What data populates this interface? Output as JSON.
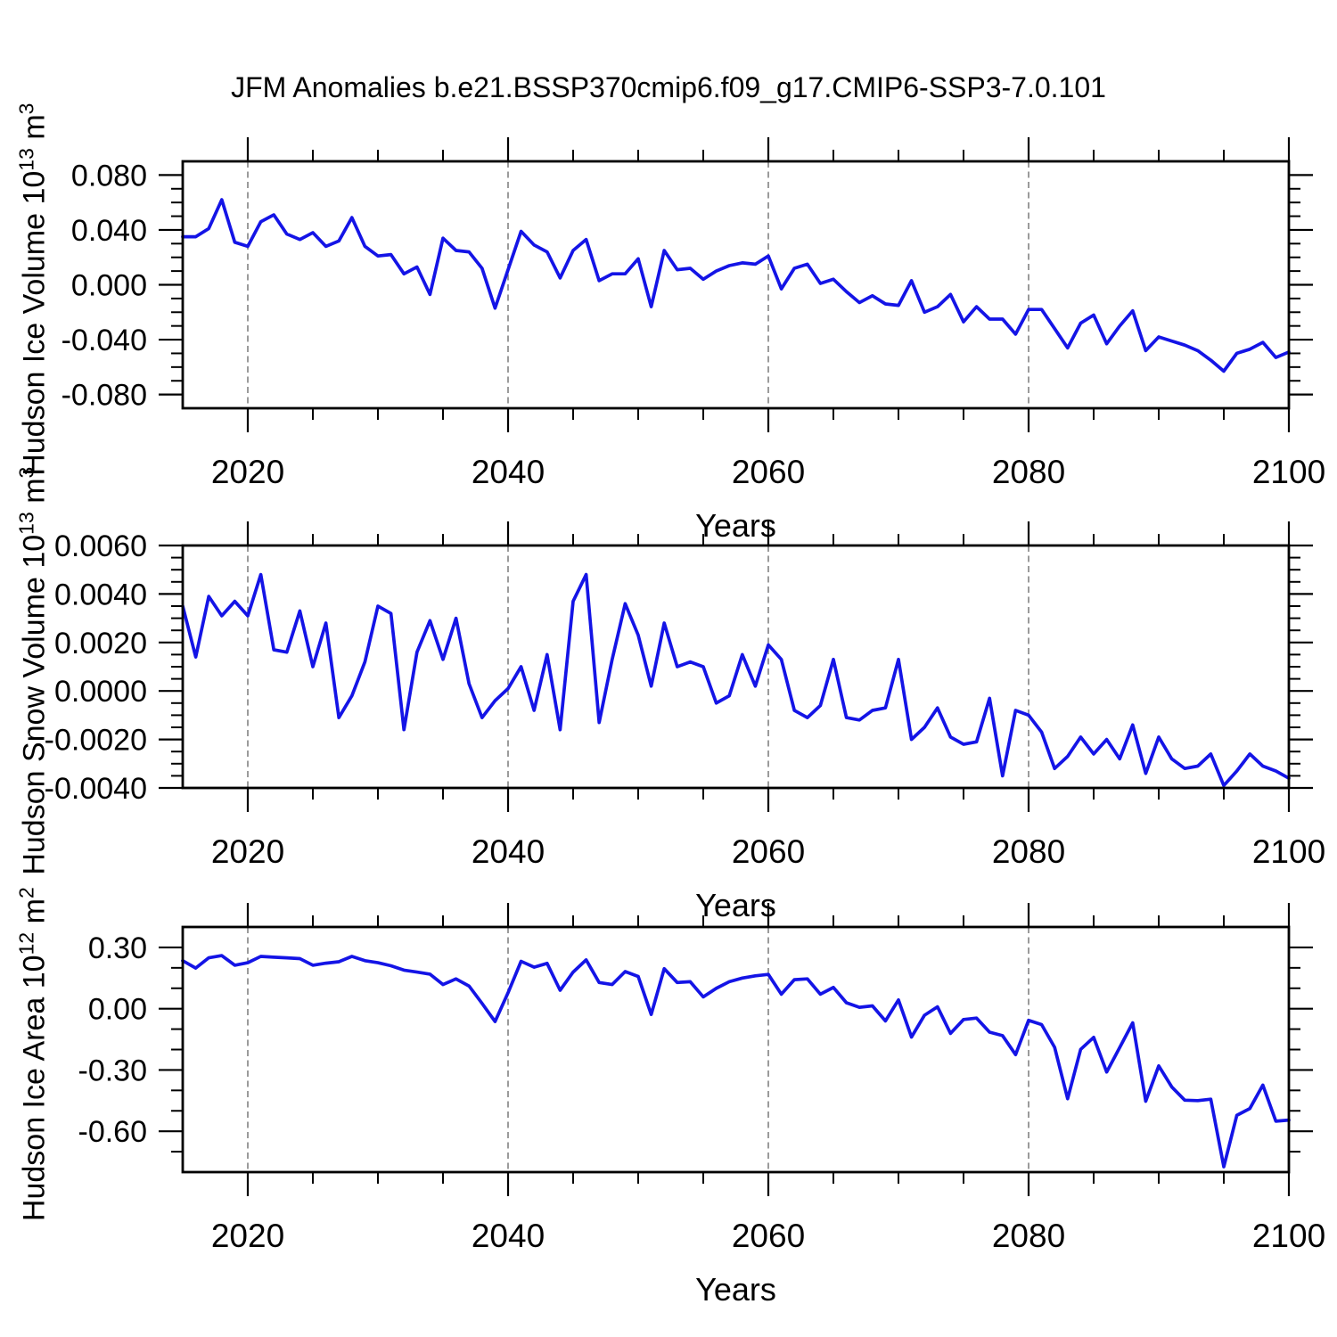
{
  "title": "JFM Anomalies b.e21.BSSP370cmip6.f09_g17.CMIP6-SSP3-7.0.101",
  "colors": {
    "line": "#1414e6",
    "grid": "#7a7a7a",
    "axis": "#000000",
    "text": "#000000",
    "background": "#ffffff"
  },
  "chart_data": [
    {
      "id": "hudson-ice-volume",
      "type": "line",
      "xlabel": "Years",
      "ylabel": {
        "prefix": "Hudson Ice Volume 10",
        "sup1": "13",
        "mid": " m",
        "sup2": "3"
      },
      "x_start": 2015,
      "x_end": 2100,
      "x_step": 1,
      "xlim": [
        2015,
        2100
      ],
      "ylim": [
        -0.09,
        0.09
      ],
      "xticks": [
        2020,
        2040,
        2060,
        2080,
        2100
      ],
      "xtick_labels": [
        "2020",
        "2040",
        "2060",
        "2080",
        "2100"
      ],
      "x_minor_step": 5,
      "yticks": [
        -0.08,
        -0.04,
        0,
        0.04,
        0.08
      ],
      "ytick_labels": [
        "-0.080",
        "-0.040",
        "0.000",
        "0.040",
        "0.080"
      ],
      "y_minor_step": 0.01,
      "grid_x": [
        2020,
        2040,
        2060,
        2080
      ],
      "legend": "none",
      "values": [
        0.035,
        0.035,
        0.041,
        0.062,
        0.031,
        0.028,
        0.046,
        0.051,
        0.037,
        0.033,
        0.038,
        0.028,
        0.032,
        0.049,
        0.028,
        0.021,
        0.022,
        0.008,
        0.013,
        -0.007,
        0.034,
        0.025,
        0.024,
        0.012,
        -0.017,
        0.011,
        0.039,
        0.029,
        0.024,
        0.005,
        0.025,
        0.033,
        0.003,
        0.008,
        0.008,
        0.019,
        -0.016,
        0.025,
        0.011,
        0.012,
        0.004,
        0.01,
        0.014,
        0.016,
        0.015,
        0.021,
        -0.003,
        0.012,
        0.015,
        0.001,
        0.004,
        -0.005,
        -0.013,
        -0.008,
        -0.014,
        -0.015,
        0.003,
        -0.02,
        -0.016,
        -0.007,
        -0.027,
        -0.016,
        -0.025,
        -0.025,
        -0.036,
        -0.018,
        -0.018,
        -0.032,
        -0.046,
        -0.028,
        -0.022,
        -0.043,
        -0.03,
        -0.019,
        -0.048,
        -0.038,
        -0.041,
        -0.044,
        -0.048,
        -0.055,
        -0.063,
        -0.05,
        -0.047,
        -0.042,
        -0.053,
        -0.049
      ]
    },
    {
      "id": "hudson-snow-volume",
      "type": "line",
      "xlabel": "Years",
      "ylabel": {
        "prefix": "Hudson Snow Volume 10",
        "sup1": "13",
        "mid": " m",
        "sup2": "3"
      },
      "x_start": 2015,
      "x_end": 2100,
      "x_step": 1,
      "xlim": [
        2015,
        2100
      ],
      "ylim": [
        -0.004,
        0.006
      ],
      "xticks": [
        2020,
        2040,
        2060,
        2080,
        2100
      ],
      "xtick_labels": [
        "2020",
        "2040",
        "2060",
        "2080",
        "2100"
      ],
      "x_minor_step": 5,
      "yticks": [
        -0.004,
        -0.002,
        0,
        0.002,
        0.004,
        0.006
      ],
      "ytick_labels": [
        "-0.0040",
        "-0.0020",
        "0.0000",
        "0.0020",
        "0.0040",
        "0.0060"
      ],
      "y_minor_step": 0.0005,
      "grid_x": [
        2020,
        2040,
        2060,
        2080
      ],
      "legend": "none",
      "values": [
        0.0035,
        0.0014,
        0.0039,
        0.0031,
        0.0037,
        0.0031,
        0.0048,
        0.0017,
        0.0016,
        0.0033,
        0.001,
        0.0028,
        -0.0011,
        -0.0002,
        0.0012,
        0.0035,
        0.0032,
        -0.0016,
        0.0016,
        0.0029,
        0.0013,
        0.003,
        0.0003,
        -0.0011,
        -0.0004,
        0.0001,
        0.001,
        -0.0008,
        0.0015,
        -0.0016,
        0.0037,
        0.0048,
        -0.0013,
        0.0013,
        0.0036,
        0.0023,
        0.0002,
        0.0028,
        0.001,
        0.0012,
        0.001,
        -0.0005,
        -0.0002,
        0.0015,
        0.0002,
        0.0019,
        0.0013,
        -0.0008,
        -0.0011,
        -0.0006,
        0.0013,
        -0.0011,
        -0.0012,
        -0.0008,
        -0.0007,
        0.0013,
        -0.002,
        -0.0015,
        -0.0007,
        -0.0019,
        -0.0022,
        -0.0021,
        -0.0003,
        -0.0035,
        -0.0008,
        -0.001,
        -0.0017,
        -0.0032,
        -0.0027,
        -0.0019,
        -0.0026,
        -0.002,
        -0.0028,
        -0.0014,
        -0.0034,
        -0.0019,
        -0.0028,
        -0.0032,
        -0.0031,
        -0.0026,
        -0.0039,
        -0.0033,
        -0.0026,
        -0.0031,
        -0.0033,
        -0.0036
      ]
    },
    {
      "id": "hudson-ice-area",
      "type": "line",
      "xlabel": "Years",
      "ylabel": {
        "prefix": "Hudson Ice Area 10",
        "sup1": "12",
        "mid": " m",
        "sup2": "2"
      },
      "x_start": 2015,
      "x_end": 2100,
      "x_step": 1,
      "xlim": [
        2015,
        2100
      ],
      "ylim": [
        -0.8,
        0.4
      ],
      "xticks": [
        2020,
        2040,
        2060,
        2080,
        2100
      ],
      "xtick_labels": [
        "2020",
        "2040",
        "2060",
        "2080",
        "2100"
      ],
      "x_minor_step": 5,
      "yticks": [
        -0.6,
        -0.3,
        0,
        0.3
      ],
      "ytick_labels": [
        "-0.60",
        "-0.30",
        "0.00",
        "0.30"
      ],
      "y_minor_step": 0.1,
      "grid_x": [
        2020,
        2040,
        2060,
        2080
      ],
      "legend": "none",
      "values": [
        0.235,
        0.199,
        0.249,
        0.26,
        0.213,
        0.225,
        0.256,
        0.252,
        0.249,
        0.245,
        0.213,
        0.223,
        0.23,
        0.256,
        0.235,
        0.225,
        0.21,
        0.189,
        0.179,
        0.169,
        0.118,
        0.146,
        0.111,
        0.026,
        -0.063,
        0.078,
        0.232,
        0.203,
        0.222,
        0.09,
        0.179,
        0.239,
        0.128,
        0.118,
        0.182,
        0.158,
        -0.028,
        0.196,
        0.128,
        0.132,
        0.058,
        0.1,
        0.132,
        0.15,
        0.161,
        0.168,
        0.071,
        0.142,
        0.146,
        0.071,
        0.104,
        0.029,
        0.007,
        0.014,
        -0.06,
        0.043,
        -0.139,
        -0.032,
        0.009,
        -0.121,
        -0.053,
        -0.046,
        -0.115,
        -0.132,
        -0.225,
        -0.057,
        -0.078,
        -0.189,
        -0.441,
        -0.199,
        -0.14,
        -0.31,
        -0.19,
        -0.069,
        -0.453,
        -0.28,
        -0.383,
        -0.448,
        -0.45,
        -0.443,
        -0.774,
        -0.522,
        -0.489,
        -0.374,
        -0.551,
        -0.545
      ]
    }
  ]
}
